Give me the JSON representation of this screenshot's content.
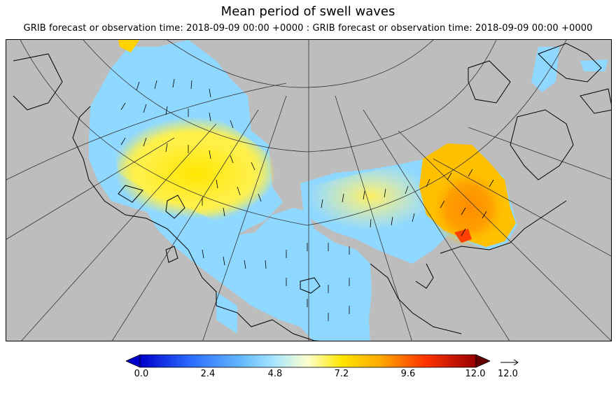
{
  "title": "Mean period of swell waves",
  "subtitle": "GRIB forecast or observation time: 2018-09-09 00:00 +0000 : GRIB forecast or observation time: 2018-09-09 00:00 +0000",
  "colorbar": {
    "ticks": [
      "0.0",
      "2.4",
      "4.8",
      "7.2",
      "9.6",
      "12.0"
    ],
    "min": 0,
    "max": 12,
    "colors": [
      "#0000cc",
      "#2b6bff",
      "#8fd8ff",
      "#ffffcc",
      "#ffe600",
      "#ffa500",
      "#ff3300",
      "#990000"
    ]
  },
  "reference_vector": {
    "label": "12.0"
  },
  "colors": {
    "land": "#bdbdbd",
    "coast": "#000000",
    "grid": "#333333"
  }
}
